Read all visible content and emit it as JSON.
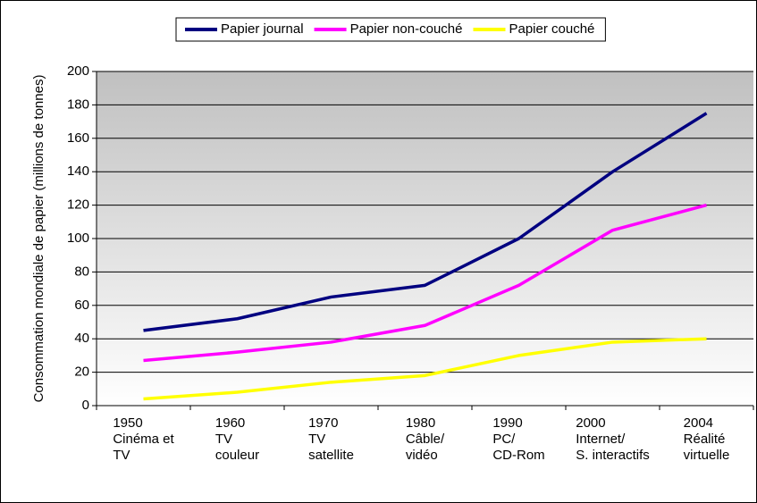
{
  "chart_data": {
    "type": "line",
    "y_label": "Consommation mondiale de papier (millions de tonnes)",
    "categories": [
      [
        "1950",
        "Cinéma et",
        "TV"
      ],
      [
        "1960",
        "TV",
        "couleur"
      ],
      [
        "1970",
        "TV",
        "satellite"
      ],
      [
        "1980",
        "Câble/",
        "vidéo"
      ],
      [
        "1990",
        "PC/",
        "CD-Rom"
      ],
      [
        "2000",
        "Internet/",
        "S. interactifs"
      ],
      [
        "2004",
        "Réalité",
        "virtuelle"
      ]
    ],
    "series": [
      {
        "name": "Papier journal",
        "color": "#000080",
        "values": [
          45,
          52,
          65,
          72,
          100,
          140,
          175
        ]
      },
      {
        "name": "Papier non-couché",
        "color": "#ff00ff",
        "values": [
          27,
          32,
          38,
          48,
          72,
          105,
          120
        ]
      },
      {
        "name": "Papier couché",
        "color": "#ffff00",
        "values": [
          4,
          8,
          14,
          18,
          30,
          38,
          40
        ]
      }
    ],
    "ylim": [
      0,
      200
    ],
    "yticks": [
      0,
      20,
      40,
      60,
      80,
      100,
      120,
      140,
      160,
      180,
      200
    ],
    "grid": true,
    "legend": "top"
  }
}
